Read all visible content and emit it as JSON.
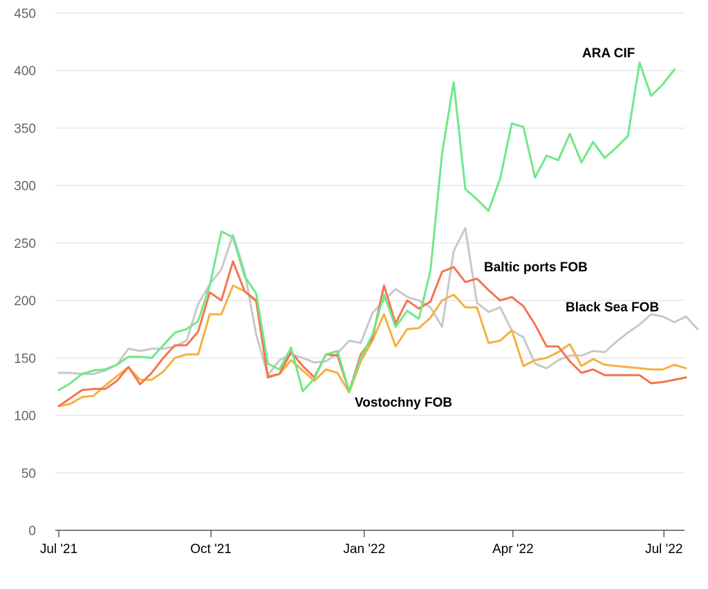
{
  "chart_data": {
    "type": "line",
    "title": "",
    "xlabel": "",
    "ylabel": "",
    "ylim": [
      0,
      450
    ],
    "yticks": [
      "0",
      "50",
      "100",
      "150",
      "200",
      "250",
      "300",
      "350",
      "400",
      "450"
    ],
    "grid": true,
    "x_start": "2021-07-01",
    "x_step_days": 7,
    "xticks": [
      {
        "label": "Jul '21",
        "week": 0
      },
      {
        "label": "Oct '21",
        "week": 13.1
      },
      {
        "label": "Jan '22",
        "week": 26.3
      },
      {
        "label": "Apr '22",
        "week": 39.1
      },
      {
        "label": "Jul '22",
        "week": 52.1
      }
    ],
    "series": [
      {
        "name": "Black Sea FOB",
        "color": "#c8c8c8",
        "values": [
          137,
          137,
          136,
          136,
          139,
          144,
          158,
          156,
          158,
          158,
          160,
          165,
          197,
          214,
          227,
          257,
          225,
          170,
          135,
          148,
          153,
          150,
          146,
          147,
          154,
          165,
          163,
          189,
          200,
          210,
          203,
          200,
          194,
          177,
          243,
          263,
          198,
          190,
          194,
          174,
          168,
          145,
          141,
          148,
          152,
          152,
          156,
          155,
          164,
          172,
          179,
          188,
          186,
          181,
          186,
          175
        ]
      },
      {
        "name": "Vostochny FOB",
        "color": "#f5b041",
        "values": [
          108,
          110,
          116,
          117,
          126,
          134,
          142,
          131,
          131,
          138,
          150,
          153,
          153,
          188,
          188,
          213,
          208,
          199,
          134,
          136,
          148,
          139,
          130,
          140,
          137,
          120,
          147,
          165,
          188,
          160,
          175,
          176,
          185,
          200,
          205,
          194,
          194,
          163,
          165,
          174,
          143,
          148,
          150,
          155,
          162,
          143,
          149,
          144,
          143,
          142,
          141,
          140,
          140,
          144,
          141
        ]
      },
      {
        "name": "Baltic ports FOB",
        "color": "#f47451",
        "values": [
          108,
          115,
          122,
          123,
          123,
          130,
          142,
          127,
          137,
          150,
          161,
          161,
          173,
          207,
          200,
          234,
          208,
          200,
          133,
          136,
          155,
          143,
          133,
          153,
          152,
          121,
          153,
          167,
          213,
          180,
          200,
          193,
          199,
          225,
          229,
          216,
          219,
          209,
          200,
          203,
          195,
          179,
          160,
          160,
          147,
          137,
          140,
          135,
          135,
          135,
          135,
          128,
          129,
          131,
          133
        ]
      },
      {
        "name": "ARA CIF",
        "color": "#6ee887",
        "values": [
          122,
          128,
          136,
          139,
          140,
          144,
          151,
          151,
          150,
          161,
          172,
          175,
          182,
          213,
          260,
          255,
          221,
          206,
          145,
          140,
          159,
          121,
          132,
          153,
          156,
          121,
          150,
          170,
          205,
          177,
          191,
          184,
          226,
          328,
          390,
          297,
          288,
          278,
          306,
          354,
          351,
          307,
          326,
          322,
          345,
          320,
          338,
          324,
          333,
          343,
          407,
          378,
          388,
          401
        ]
      }
    ],
    "annotations": [
      {
        "text": "ARA CIF",
        "series": "ARA CIF"
      },
      {
        "text": "Baltic ports FOB",
        "series": "Baltic ports FOB"
      },
      {
        "text": "Black Sea FOB",
        "series": "Black Sea FOB"
      },
      {
        "text": "Vostochny FOB",
        "series": "Vostochny FOB"
      }
    ]
  }
}
